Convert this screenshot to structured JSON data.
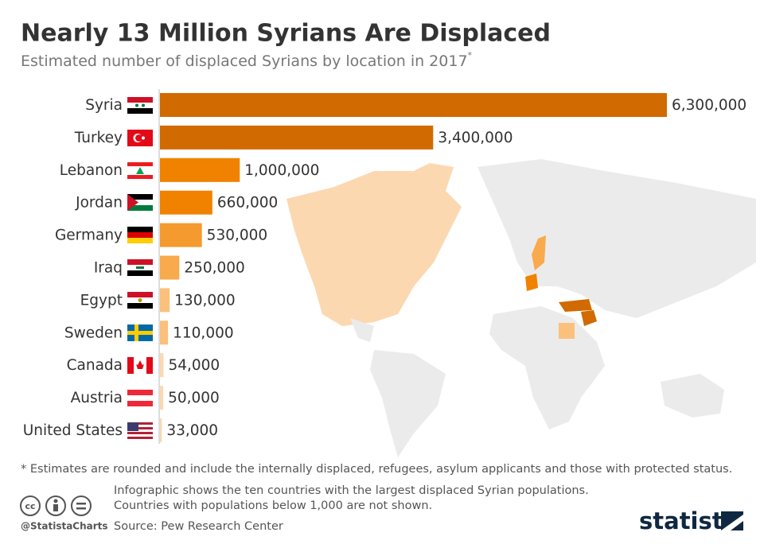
{
  "chart_data": {
    "type": "bar",
    "orientation": "horizontal",
    "title": "Nearly 13 Million Syrians Are Displaced",
    "subtitle": "Estimated number of displaced Syrians by location in 2017",
    "subtitle_mark": "*",
    "categories": [
      "Syria",
      "Turkey",
      "Lebanon",
      "Jordan",
      "Germany",
      "Iraq",
      "Egypt",
      "Sweden",
      "Canada",
      "Austria",
      "United States"
    ],
    "values": [
      6300000,
      3400000,
      1000000,
      660000,
      530000,
      250000,
      130000,
      110000,
      54000,
      50000,
      33000
    ],
    "value_labels": [
      "6,300,000",
      "3,400,000",
      "1,000,000",
      "660,000",
      "530,000",
      "250,000",
      "130,000",
      "110,000",
      "54,000",
      "50,000",
      "33,000"
    ],
    "colors": [
      "#d16a00",
      "#d16a00",
      "#f08200",
      "#f08200",
      "#f59a2e",
      "#f8aa4c",
      "#fbc07c",
      "#fbc07c",
      "#fcd8b0",
      "#fcd8b0",
      "#fcd8b0"
    ],
    "footnote": "* Estimates are rounded and include the internally displaced, refugees, asylum applicants and those with protected status.",
    "notes": [
      "Infographic shows the ten countries with the largest displaced Syrian populations.",
      "Countries with populations below 1,000 are not shown."
    ],
    "source": "Source: Pew Research Center",
    "credit": "@StatistaCharts",
    "brand": "statista"
  }
}
